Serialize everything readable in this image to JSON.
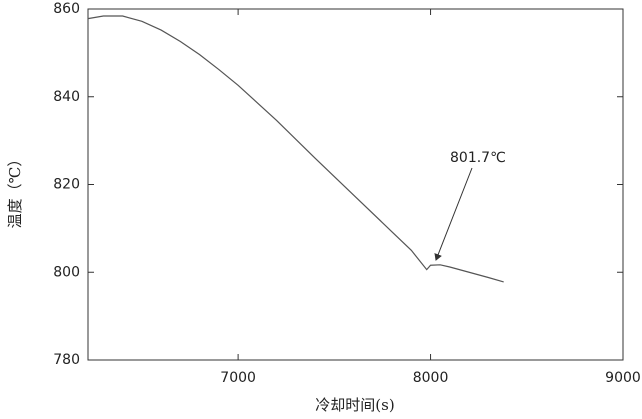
{
  "chart_data": {
    "type": "line",
    "x": [
      6220,
      6300,
      6400,
      6500,
      6600,
      6700,
      6800,
      6900,
      7000,
      7200,
      7400,
      7600,
      7800,
      7900,
      7980,
      8000,
      8050,
      8100,
      8200,
      8300,
      8380
    ],
    "series": [
      {
        "color": "#555555",
        "values": [
          857.8,
          858.4,
          858.4,
          857.2,
          855.2,
          852.6,
          849.6,
          846.2,
          842.6,
          834.6,
          826,
          817.6,
          809.2,
          805,
          800.6,
          801.6,
          801.7,
          801.2,
          800,
          798.8,
          797.8
        ]
      }
    ],
    "xlim": [
      6220,
      9000
    ],
    "ylim": [
      780,
      860
    ],
    "xticks": [
      7000,
      8000,
      9000
    ],
    "yticks": [
      780,
      800,
      820,
      840,
      860
    ],
    "xlabel": "冷却时间(s)",
    "ylabel": "温度（℃）",
    "annotation": "801.7℃"
  }
}
